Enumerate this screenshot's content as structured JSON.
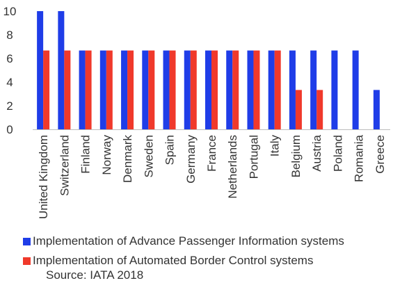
{
  "chart_data": {
    "type": "bar",
    "title": "",
    "categories": [
      "United Kingdom",
      "Switzerland",
      "Finland",
      "Norway",
      "Denmark",
      "Sweden",
      "Spain",
      "Germany",
      "France",
      "Netherlands",
      "Portugal",
      "Italy",
      "Belgium",
      "Austria",
      "Poland",
      "Romania",
      "Greece"
    ],
    "series": [
      {
        "name": "Implementation of Advance Passenger Information systems",
        "color": "#1f3de8",
        "values": [
          10,
          10,
          6.67,
          6.67,
          6.67,
          6.67,
          6.67,
          6.67,
          6.67,
          6.67,
          6.67,
          6.67,
          6.67,
          6.67,
          6.67,
          6.67,
          3.33
        ]
      },
      {
        "name": "Implementation of Automated Border Control systems",
        "color": "#f0392b",
        "values": [
          6.67,
          6.67,
          6.67,
          6.67,
          6.67,
          6.67,
          6.67,
          6.67,
          6.67,
          6.67,
          6.67,
          6.67,
          3.33,
          3.33,
          0,
          0,
          0
        ]
      }
    ],
    "ylim": [
      0,
      10
    ],
    "yticks": [
      "0",
      "2",
      "4",
      "6",
      "8",
      "10"
    ],
    "xlabel": "",
    "ylabel": "",
    "grid": false,
    "legend_position": "bottom"
  },
  "source_text": "Source: IATA 2018"
}
